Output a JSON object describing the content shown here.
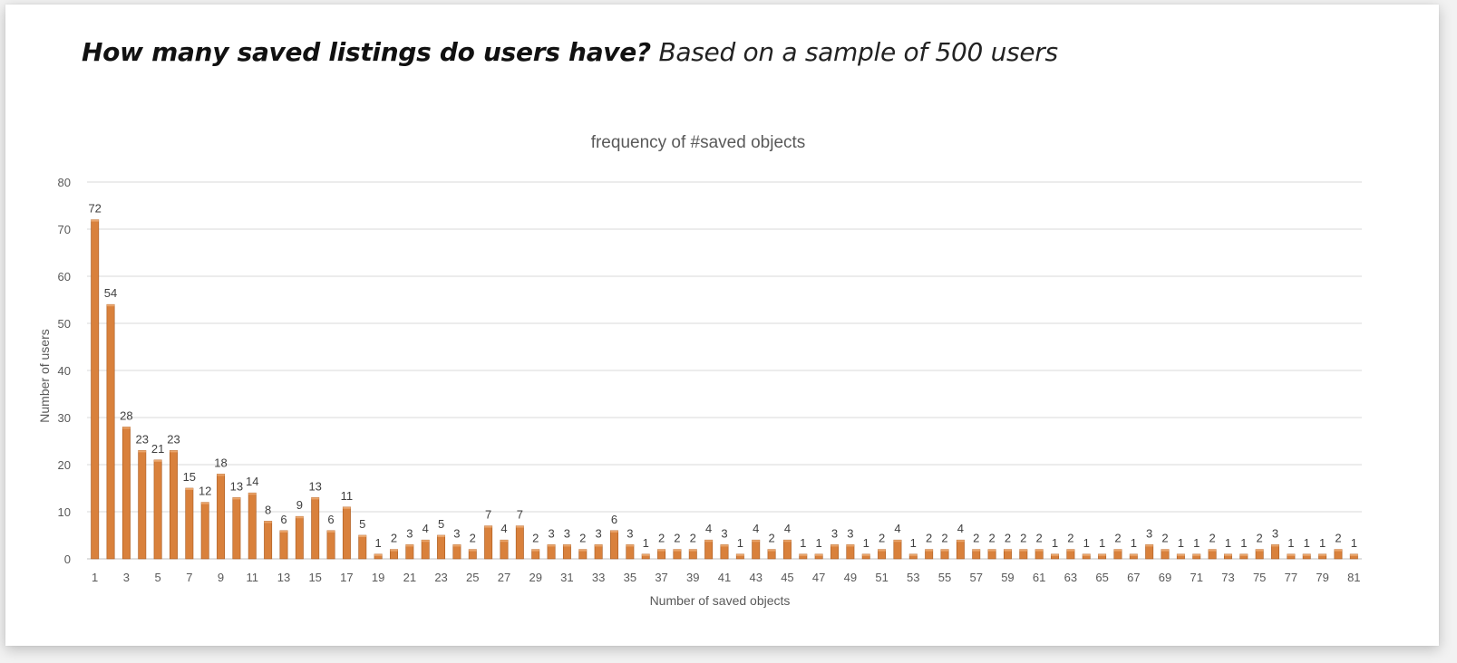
{
  "header": {
    "title_bold": "How many saved listings do users have?",
    "title_rest": "Based on a sample of 500 users"
  },
  "colors": {
    "bar": "#d9813c",
    "bar_edge": "#a95a1f",
    "grid": "#d9d9d9",
    "text": "#595959"
  },
  "chart_data": {
    "type": "bar",
    "title": "frequency of #saved objects",
    "xlabel": "Number of saved objects",
    "ylabel": "Number of users",
    "ylim": [
      0,
      80
    ],
    "yticks": [
      0,
      10,
      20,
      30,
      40,
      50,
      60,
      70,
      80
    ],
    "grid": true,
    "categories": [
      1,
      2,
      3,
      4,
      5,
      6,
      7,
      8,
      9,
      10,
      11,
      12,
      13,
      14,
      15,
      16,
      17,
      18,
      19,
      20,
      21,
      22,
      23,
      24,
      25,
      26,
      27,
      28,
      29,
      30,
      31,
      32,
      33,
      34,
      35,
      36,
      37,
      38,
      39,
      40,
      41,
      42,
      43,
      44,
      45,
      46,
      47,
      48,
      49,
      50,
      51,
      52,
      53,
      54,
      55,
      56,
      57,
      58,
      59,
      60,
      61,
      62,
      63,
      64,
      65,
      66,
      67,
      68,
      69,
      70,
      71,
      72,
      73,
      74,
      75,
      76,
      77,
      78,
      79,
      80,
      81
    ],
    "values": [
      72,
      54,
      28,
      23,
      21,
      23,
      15,
      12,
      18,
      13,
      14,
      8,
      6,
      9,
      13,
      6,
      11,
      5,
      1,
      2,
      3,
      4,
      5,
      3,
      2,
      7,
      4,
      7,
      2,
      3,
      3,
      2,
      3,
      6,
      3,
      1,
      2,
      2,
      2,
      4,
      3,
      1,
      4,
      2,
      4,
      1,
      1,
      3,
      3,
      1,
      2,
      4,
      1,
      2,
      2,
      4,
      2,
      2,
      2,
      2,
      2,
      1,
      2,
      1,
      1,
      2,
      1,
      3,
      2,
      1,
      1,
      2,
      1,
      1,
      2,
      3,
      1,
      1,
      1,
      2,
      1
    ],
    "x_tick_every": 2
  }
}
